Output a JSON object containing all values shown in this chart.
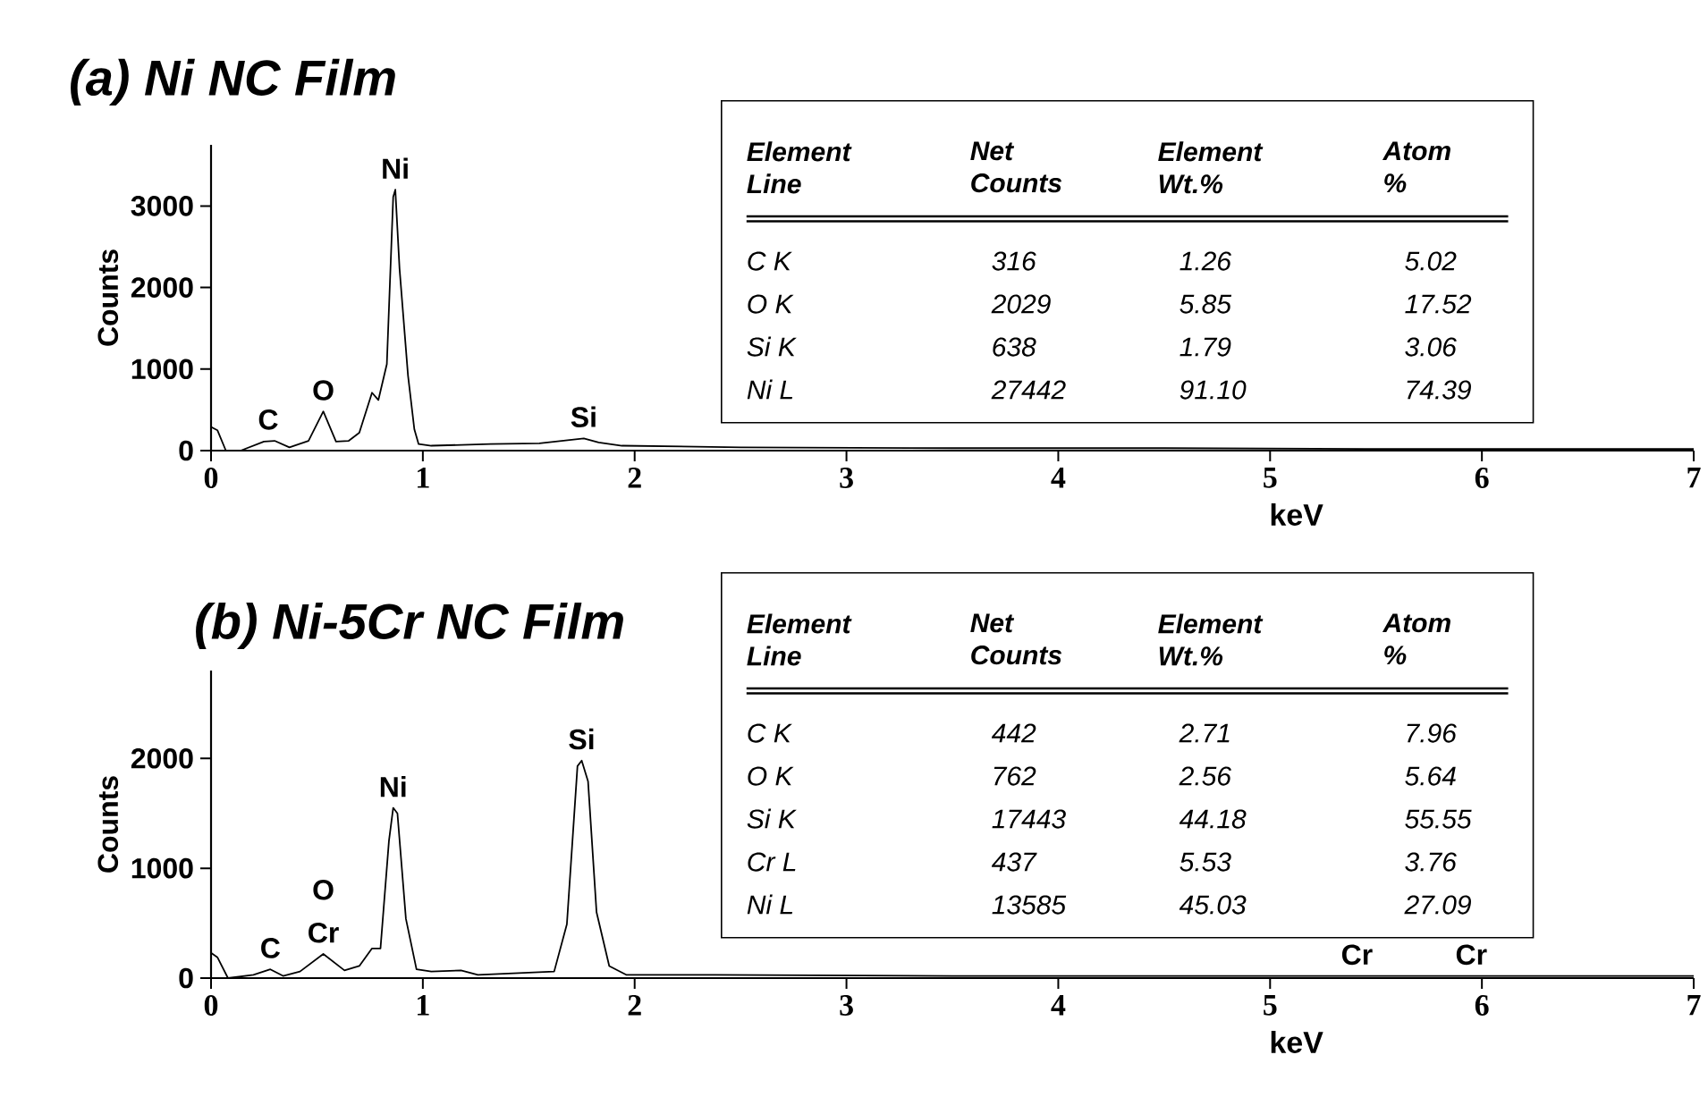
{
  "chart_data": [
    {
      "type": "line",
      "title": "(a) Ni NC Film",
      "xlabel": "keV",
      "ylabel": "Counts",
      "color": "#000000",
      "x": [
        0,
        0.03,
        0.07,
        0.14,
        0.25,
        0.3,
        0.37,
        0.46,
        0.53,
        0.59,
        0.65,
        0.7,
        0.76,
        0.79,
        0.83,
        0.86,
        0.87,
        0.89,
        0.93,
        0.96,
        0.98,
        1.04,
        1.32,
        1.55,
        1.76,
        1.83,
        1.94,
        2.5,
        3.5,
        4.5,
        5.5,
        6.5,
        7
      ],
      "values": [
        290,
        250,
        0,
        0,
        110,
        120,
        40,
        120,
        480,
        110,
        120,
        220,
        710,
        620,
        1060,
        3110,
        3200,
        2230,
        920,
        260,
        80,
        60,
        80,
        90,
        150,
        100,
        60,
        40,
        30,
        30,
        20,
        20,
        20
      ],
      "xlim": [
        0,
        7
      ],
      "ylim": [
        0,
        3750
      ],
      "xticks": [
        0,
        1,
        2,
        3,
        4,
        5,
        6,
        7
      ],
      "yticks": [
        0,
        1000,
        2000,
        3000
      ],
      "annotations": [
        {
          "text": "C",
          "x": 0.27,
          "y": 120
        },
        {
          "text": "O",
          "x": 0.53,
          "y": 480
        },
        {
          "text": "Ni",
          "x": 0.87,
          "y": 3200
        },
        {
          "text": "Si",
          "x": 1.76,
          "y": 150
        },
        "Element Line",
        "Net Counts",
        "Element Wt.%",
        "Atom %",
        "C K",
        "316",
        "1.26",
        "5.02",
        "O K",
        "2029",
        "5.85",
        "17.52",
        "Si K",
        "638",
        "1.79",
        "3.06",
        "Ni L",
        "27442",
        "91.10",
        "74.39"
      ]
    },
    {
      "type": "line",
      "title": "(b) Ni-5Cr NC Film",
      "xlabel": "keV",
      "ylabel": "Counts",
      "color": "#000000",
      "x": [
        0,
        0.03,
        0.08,
        0.2,
        0.28,
        0.34,
        0.42,
        0.53,
        0.63,
        0.7,
        0.76,
        0.8,
        0.84,
        0.86,
        0.88,
        0.92,
        0.97,
        1.04,
        1.18,
        1.26,
        1.62,
        1.68,
        1.73,
        1.75,
        1.78,
        1.82,
        1.88,
        1.96,
        2.38,
        3.5,
        4.5,
        5.5,
        6.5,
        7
      ],
      "values": [
        230,
        190,
        0,
        30,
        80,
        20,
        60,
        220,
        70,
        110,
        270,
        270,
        1250,
        1550,
        1500,
        540,
        80,
        60,
        70,
        30,
        60,
        490,
        1930,
        1980,
        1790,
        600,
        110,
        30,
        30,
        20,
        20,
        20,
        20,
        20
      ],
      "xlim": [
        0,
        7
      ],
      "ylim": [
        0,
        2800
      ],
      "xticks": [
        0,
        1,
        2,
        3,
        4,
        5,
        6,
        7
      ],
      "yticks": [
        0,
        1000,
        2000
      ],
      "annotations": [
        {
          "text": "C",
          "x": 0.28,
          "y": 80
        },
        {
          "text": "Cr",
          "x": 0.53,
          "y": 220
        },
        {
          "text": "O",
          "x": 0.53,
          "y": 220
        },
        {
          "text": "Ni",
          "x": 0.86,
          "y": 1550
        },
        {
          "text": "Si",
          "x": 1.75,
          "y": 1980
        },
        {
          "text": "Cr",
          "x": 5.41,
          "y": 20
        },
        {
          "text": "Cr",
          "x": 5.95,
          "y": 20
        },
        "Element Line",
        "Net Counts",
        "Element Wt.%",
        "Atom %",
        "C K",
        "442",
        "2.71",
        "7.96",
        "O K",
        "762",
        "2.56",
        "5.64",
        "Si K",
        "17443",
        "44.18",
        "55.55",
        "Cr L",
        "437",
        "5.53",
        "3.76",
        "Ni L",
        "13585",
        "45.03",
        "27.09"
      ]
    }
  ]
}
